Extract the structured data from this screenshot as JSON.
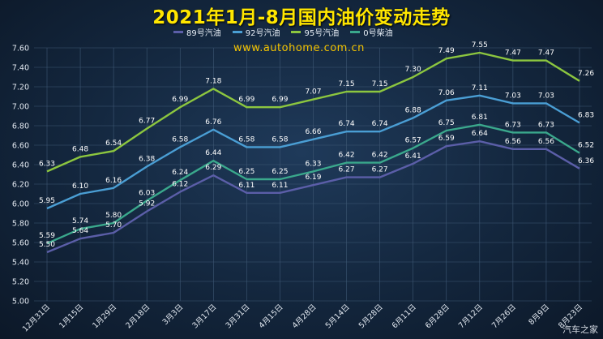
{
  "header": {
    "title": "2021年1月-8月国内油价变动走势",
    "watermark": "www.autohome.com.cn",
    "logo": "汽车之家"
  },
  "chart_data": {
    "type": "line",
    "title": "2021年1月-8月国内油价变动走势",
    "xlabel": "",
    "ylabel": "",
    "ylim": [
      5.0,
      7.6
    ],
    "ytick_step": 0.2,
    "grid": true,
    "legend_position": "top-center",
    "categories": [
      "12月31日",
      "1月15日",
      "1月29日",
      "2月18日",
      "3月3日",
      "3月17日",
      "3月31日",
      "4月15日",
      "4月28日",
      "5月14日",
      "5月28日",
      "6月11日",
      "6月28日",
      "7月12日",
      "7月26日",
      "8月9日",
      "8月23日"
    ],
    "series": [
      {
        "name": "89号汽油",
        "color": "#5b5ea8",
        "values": [
          5.5,
          5.64,
          5.7,
          5.92,
          6.12,
          6.29,
          6.11,
          6.11,
          6.19,
          6.27,
          6.27,
          6.41,
          6.59,
          6.64,
          6.56,
          6.56,
          6.36
        ]
      },
      {
        "name": "92号汽油",
        "color": "#4a9ed4",
        "values": [
          5.95,
          6.1,
          6.16,
          6.38,
          6.58,
          6.76,
          6.58,
          6.58,
          6.66,
          6.74,
          6.74,
          6.88,
          7.06,
          7.11,
          7.03,
          7.03,
          6.83
        ]
      },
      {
        "name": "95号汽油",
        "color": "#8cc63f",
        "values": [
          6.33,
          6.48,
          6.54,
          6.77,
          6.99,
          7.18,
          6.99,
          6.99,
          7.07,
          7.15,
          7.15,
          7.3,
          7.49,
          7.55,
          7.47,
          7.47,
          7.26
        ]
      },
      {
        "name": "0号柴油",
        "color": "#3aa88c",
        "values": [
          5.59,
          5.74,
          5.8,
          6.03,
          6.24,
          6.44,
          6.25,
          6.25,
          6.33,
          6.42,
          6.42,
          6.57,
          6.75,
          6.81,
          6.73,
          6.73,
          6.52
        ]
      }
    ]
  }
}
